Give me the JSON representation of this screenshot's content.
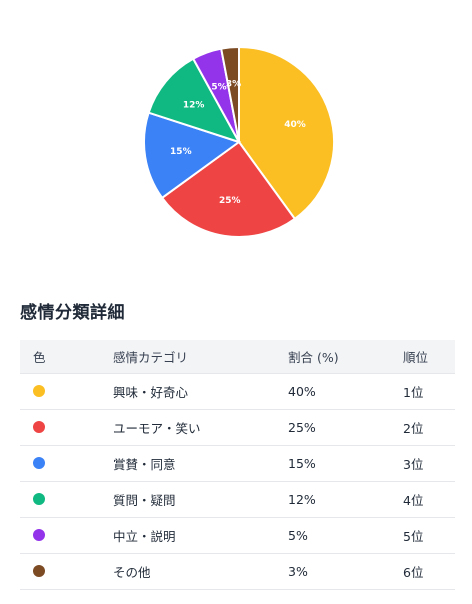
{
  "chart_data": {
    "type": "pie",
    "slices": [
      {
        "label": "40%",
        "value": 40,
        "color": "#fbbf24"
      },
      {
        "label": "25%",
        "value": 25,
        "color": "#ef4444"
      },
      {
        "label": "15%",
        "value": 15,
        "color": "#3b82f6"
      },
      {
        "label": "12%",
        "value": 12,
        "color": "#10b981"
      },
      {
        "label": "5%",
        "value": 5,
        "color": "#9333ea"
      },
      {
        "label": "3%",
        "value": 3,
        "color": "#7c4a23"
      }
    ]
  },
  "section": {
    "title": "感情分類詳細"
  },
  "table": {
    "headers": {
      "color": "色",
      "category": "感情カテゴリ",
      "ratio": "割合 (%)",
      "rank": "順位"
    },
    "rows": [
      {
        "color": "#fbbf24",
        "category": "興味・好奇心",
        "ratio": "40%",
        "rank": "1位"
      },
      {
        "color": "#ef4444",
        "category": "ユーモア・笑い",
        "ratio": "25%",
        "rank": "2位"
      },
      {
        "color": "#3b82f6",
        "category": "賞賛・同意",
        "ratio": "15%",
        "rank": "3位"
      },
      {
        "color": "#10b981",
        "category": "質問・疑問",
        "ratio": "12%",
        "rank": "4位"
      },
      {
        "color": "#9333ea",
        "category": "中立・説明",
        "ratio": "5%",
        "rank": "5位"
      },
      {
        "color": "#7c4a23",
        "category": "その他",
        "ratio": "3%",
        "rank": "6位"
      }
    ]
  }
}
